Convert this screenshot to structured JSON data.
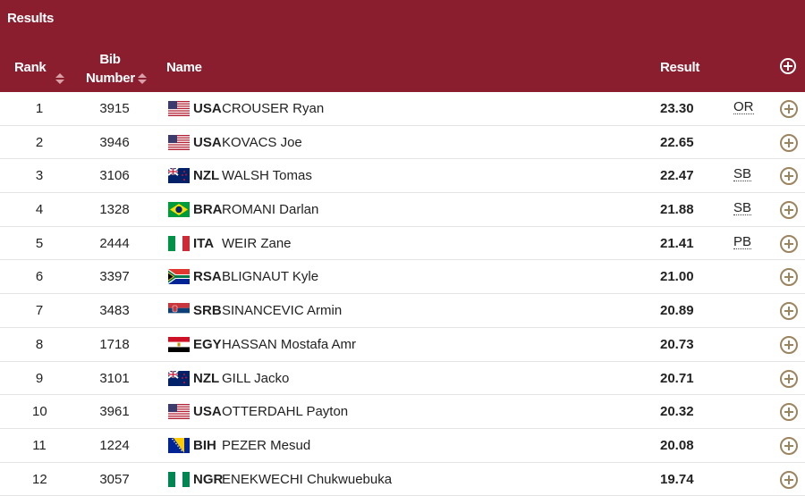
{
  "header": {
    "title": "Results",
    "rank_label": "Rank",
    "bib_label_line1": "Bib",
    "bib_label_line2": "Number",
    "name_label": "Name",
    "result_label": "Result"
  },
  "colors": {
    "header_bg": "#8a1e2e",
    "expand_icon": "#9c845f"
  },
  "rows": [
    {
      "rank": "1",
      "bib": "3915",
      "noc": "USA",
      "name": "CROUSER Ryan",
      "result": "23.30",
      "record": "OR",
      "flag": "usa"
    },
    {
      "rank": "2",
      "bib": "3946",
      "noc": "USA",
      "name": "KOVACS Joe",
      "result": "22.65",
      "record": "",
      "flag": "usa"
    },
    {
      "rank": "3",
      "bib": "3106",
      "noc": "NZL",
      "name": "WALSH Tomas",
      "result": "22.47",
      "record": "SB",
      "flag": "nzl"
    },
    {
      "rank": "4",
      "bib": "1328",
      "noc": "BRA",
      "name": "ROMANI Darlan",
      "result": "21.88",
      "record": "SB",
      "flag": "bra"
    },
    {
      "rank": "5",
      "bib": "2444",
      "noc": "ITA",
      "name": "WEIR Zane",
      "result": "21.41",
      "record": "PB",
      "flag": "ita"
    },
    {
      "rank": "6",
      "bib": "3397",
      "noc": "RSA",
      "name": "BLIGNAUT Kyle",
      "result": "21.00",
      "record": "",
      "flag": "rsa"
    },
    {
      "rank": "7",
      "bib": "3483",
      "noc": "SRB",
      "name": "SINANCEVIC Armin",
      "result": "20.89",
      "record": "",
      "flag": "srb"
    },
    {
      "rank": "8",
      "bib": "1718",
      "noc": "EGY",
      "name": "HASSAN Mostafa Amr",
      "result": "20.73",
      "record": "",
      "flag": "egy"
    },
    {
      "rank": "9",
      "bib": "3101",
      "noc": "NZL",
      "name": "GILL Jacko",
      "result": "20.71",
      "record": "",
      "flag": "nzl"
    },
    {
      "rank": "10",
      "bib": "3961",
      "noc": "USA",
      "name": "OTTERDAHL Payton",
      "result": "20.32",
      "record": "",
      "flag": "usa"
    },
    {
      "rank": "11",
      "bib": "1224",
      "noc": "BIH",
      "name": "PEZER Mesud",
      "result": "20.08",
      "record": "",
      "flag": "bih"
    },
    {
      "rank": "12",
      "bib": "3057",
      "noc": "NGR",
      "name": "ENEKWECHI Chukwuebuka",
      "result": "19.74",
      "record": "",
      "flag": "ngr"
    }
  ]
}
